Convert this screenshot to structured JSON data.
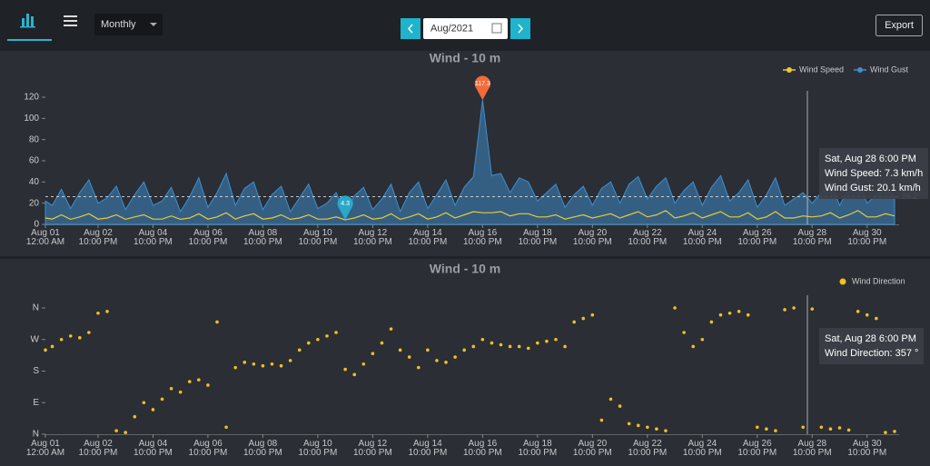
{
  "header": {
    "period": "Monthly",
    "date": "Aug/2021",
    "export": "Export"
  },
  "chart_data": [
    {
      "type": "line",
      "title": "Wind - 10 m",
      "x": [
        "2021-08-01T00:00",
        "2021-08-01T06:00",
        "2021-08-01T14:00",
        "2021-08-01T22:00",
        "2021-08-02T06:00",
        "2021-08-02T14:00",
        "2021-08-02T22:00",
        "2021-08-03T06:00",
        "2021-08-03T14:00",
        "2021-08-03T22:00",
        "2021-08-04T06:00",
        "2021-08-04T14:00",
        "2021-08-04T22:00",
        "2021-08-05T06:00",
        "2021-08-05T14:00",
        "2021-08-05T22:00",
        "2021-08-06T06:00",
        "2021-08-06T14:00",
        "2021-08-06T22:00",
        "2021-08-07T06:00",
        "2021-08-07T14:00",
        "2021-08-07T22:00",
        "2021-08-08T06:00",
        "2021-08-08T14:00",
        "2021-08-08T22:00",
        "2021-08-09T06:00",
        "2021-08-09T14:00",
        "2021-08-09T22:00",
        "2021-08-10T06:00",
        "2021-08-10T14:00",
        "2021-08-10T22:00",
        "2021-08-11T06:00",
        "2021-08-11T14:00",
        "2021-08-11T22:00",
        "2021-08-12T06:00",
        "2021-08-12T14:00",
        "2021-08-12T22:00",
        "2021-08-13T06:00",
        "2021-08-13T14:00",
        "2021-08-13T22:00",
        "2021-08-14T06:00",
        "2021-08-14T14:00",
        "2021-08-14T22:00",
        "2021-08-15T06:00",
        "2021-08-15T14:00",
        "2021-08-15T22:00",
        "2021-08-16T06:00",
        "2021-08-16T14:00",
        "2021-08-16T22:00",
        "2021-08-17T06:00",
        "2021-08-17T14:00",
        "2021-08-17T22:00",
        "2021-08-18T06:00",
        "2021-08-18T14:00",
        "2021-08-18T22:00",
        "2021-08-19T06:00",
        "2021-08-19T14:00",
        "2021-08-19T22:00",
        "2021-08-20T06:00",
        "2021-08-20T14:00",
        "2021-08-20T22:00",
        "2021-08-21T06:00",
        "2021-08-21T14:00",
        "2021-08-21T22:00",
        "2021-08-22T06:00",
        "2021-08-22T14:00",
        "2021-08-22T22:00",
        "2021-08-23T06:00",
        "2021-08-23T14:00",
        "2021-08-23T22:00",
        "2021-08-24T06:00",
        "2021-08-24T14:00",
        "2021-08-24T22:00",
        "2021-08-25T06:00",
        "2021-08-25T14:00",
        "2021-08-25T22:00",
        "2021-08-26T06:00",
        "2021-08-26T14:00",
        "2021-08-26T22:00",
        "2021-08-27T06:00",
        "2021-08-27T14:00",
        "2021-08-27T22:00",
        "2021-08-28T06:00",
        "2021-08-28T14:00",
        "2021-08-28T22:00",
        "2021-08-29T06:00",
        "2021-08-29T14:00",
        "2021-08-29T22:00",
        "2021-08-30T06:00",
        "2021-08-30T14:00",
        "2021-08-30T22:00",
        "2021-08-31T06:00",
        "2021-08-31T14:00",
        "2021-08-31T22:00"
      ],
      "series": [
        {
          "name": "Wind Gust",
          "color": "#3d8fd1",
          "fill": true,
          "values": [
            22,
            18,
            33,
            15,
            30,
            42,
            20,
            25,
            36,
            14,
            28,
            40,
            18,
            22,
            35,
            12,
            26,
            44,
            16,
            30,
            48,
            18,
            34,
            40,
            14,
            28,
            36,
            12,
            25,
            38,
            15,
            20,
            30,
            10,
            27,
            35,
            14,
            24,
            38,
            12,
            30,
            40,
            15,
            28,
            42,
            18,
            35,
            45,
            117.3,
            46,
            48,
            30,
            44,
            40,
            22,
            30,
            38,
            16,
            28,
            36,
            18,
            34,
            40,
            20,
            38,
            45,
            24,
            36,
            44,
            20,
            32,
            40,
            18,
            35,
            46,
            22,
            30,
            42,
            16,
            28,
            44,
            18,
            24,
            30,
            20,
            30,
            40,
            18,
            34,
            42,
            20,
            28,
            34,
            26
          ]
        },
        {
          "name": "Wind Speed",
          "color": "#e8c93a",
          "fill": false,
          "values": [
            6,
            5,
            9,
            4.8,
            7,
            10,
            5,
            6,
            9,
            4.8,
            7,
            9,
            5,
            5,
            8,
            4.8,
            6,
            10,
            5,
            7,
            11,
            5,
            8,
            10,
            5,
            6,
            9,
            4.8,
            6,
            9,
            5,
            5,
            7,
            4.3,
            6,
            9,
            5,
            6,
            10,
            4.8,
            7,
            10,
            5,
            7,
            11,
            6,
            9,
            12,
            11,
            11,
            12,
            8,
            10,
            10,
            7,
            7,
            9,
            5,
            7,
            9,
            6,
            8,
            10,
            6,
            9,
            12,
            7,
            9,
            13,
            6,
            8,
            11,
            6,
            9,
            12,
            7,
            7,
            11,
            5,
            7,
            12,
            6,
            6,
            8,
            7,
            8,
            11,
            6,
            9,
            13,
            7,
            7,
            10,
            8
          ]
        }
      ],
      "xlim": [
        "2021-08-01T00:00",
        "2021-08-31T22:00"
      ],
      "xticks": [
        {
          "value": "2021-08-01T00:00",
          "label": "Aug 01\n12:00 AM"
        },
        {
          "value": "2021-08-02T22:00",
          "label": "Aug 02\n10:00 PM"
        },
        {
          "value": "2021-08-04T22:00",
          "label": "Aug 04\n10:00 PM"
        },
        {
          "value": "2021-08-06T22:00",
          "label": "Aug 06\n10:00 PM"
        },
        {
          "value": "2021-08-08T22:00",
          "label": "Aug 08\n10:00 PM"
        },
        {
          "value": "2021-08-10T22:00",
          "label": "Aug 10\n10:00 PM"
        },
        {
          "value": "2021-08-12T22:00",
          "label": "Aug 12\n10:00 PM"
        },
        {
          "value": "2021-08-14T22:00",
          "label": "Aug 14\n10:00 PM"
        },
        {
          "value": "2021-08-16T22:00",
          "label": "Aug 16\n10:00 PM"
        },
        {
          "value": "2021-08-18T22:00",
          "label": "Aug 18\n10:00 PM"
        },
        {
          "value": "2021-08-20T22:00",
          "label": "Aug 20\n10:00 PM"
        },
        {
          "value": "2021-08-22T22:00",
          "label": "Aug 22\n10:00 PM"
        },
        {
          "value": "2021-08-24T22:00",
          "label": "Aug 24\n10:00 PM"
        },
        {
          "value": "2021-08-26T22:00",
          "label": "Aug 26\n10:00 PM"
        },
        {
          "value": "2021-08-28T22:00",
          "label": "Aug 28\n10:00 PM"
        },
        {
          "value": "2021-08-30T22:00",
          "label": "Aug 30\n10:00 PM"
        }
      ],
      "ylim": [
        0,
        120
      ],
      "yticks": [
        0,
        20,
        40,
        60,
        80,
        100,
        120
      ],
      "reference_line": 26.2,
      "max_marker": 117.3,
      "min_marker": 4.3,
      "tooltip": {
        "title": "Sat, Aug 28 6:00 PM",
        "lines": [
          "Wind Speed: 7.3 km/h",
          "Wind Gust: 20.1 km/h"
        ]
      }
    },
    {
      "type": "scatter",
      "title": "Wind - 10 m",
      "x": [
        "2021-08-01T00:00",
        "2021-08-01T06:00",
        "2021-08-01T14:00",
        "2021-08-01T22:00",
        "2021-08-02T06:00",
        "2021-08-02T14:00",
        "2021-08-02T22:00",
        "2021-08-03T06:00",
        "2021-08-03T14:00",
        "2021-08-03T22:00",
        "2021-08-04T06:00",
        "2021-08-04T14:00",
        "2021-08-04T22:00",
        "2021-08-05T06:00",
        "2021-08-05T14:00",
        "2021-08-05T22:00",
        "2021-08-06T06:00",
        "2021-08-06T14:00",
        "2021-08-06T22:00",
        "2021-08-07T06:00",
        "2021-08-07T14:00",
        "2021-08-07T22:00",
        "2021-08-08T06:00",
        "2021-08-08T14:00",
        "2021-08-08T22:00",
        "2021-08-09T06:00",
        "2021-08-09T14:00",
        "2021-08-09T22:00",
        "2021-08-10T06:00",
        "2021-08-10T14:00",
        "2021-08-10T22:00",
        "2021-08-11T06:00",
        "2021-08-11T14:00",
        "2021-08-11T22:00",
        "2021-08-12T06:00",
        "2021-08-12T14:00",
        "2021-08-12T22:00",
        "2021-08-13T06:00",
        "2021-08-13T14:00",
        "2021-08-13T22:00",
        "2021-08-14T06:00",
        "2021-08-14T14:00",
        "2021-08-14T22:00",
        "2021-08-15T06:00",
        "2021-08-15T14:00",
        "2021-08-15T22:00",
        "2021-08-16T06:00",
        "2021-08-16T14:00",
        "2021-08-16T22:00",
        "2021-08-17T06:00",
        "2021-08-17T14:00",
        "2021-08-17T22:00",
        "2021-08-18T06:00",
        "2021-08-18T14:00",
        "2021-08-18T22:00",
        "2021-08-19T06:00",
        "2021-08-19T14:00",
        "2021-08-19T22:00",
        "2021-08-20T06:00",
        "2021-08-20T14:00",
        "2021-08-20T22:00",
        "2021-08-21T06:00",
        "2021-08-21T14:00",
        "2021-08-21T22:00",
        "2021-08-22T06:00",
        "2021-08-22T14:00",
        "2021-08-22T22:00",
        "2021-08-23T06:00",
        "2021-08-23T14:00",
        "2021-08-23T22:00",
        "2021-08-24T06:00",
        "2021-08-24T14:00",
        "2021-08-24T22:00",
        "2021-08-25T06:00",
        "2021-08-25T14:00",
        "2021-08-25T22:00",
        "2021-08-26T06:00",
        "2021-08-26T14:00",
        "2021-08-26T22:00",
        "2021-08-27T06:00",
        "2021-08-27T14:00",
        "2021-08-27T22:00",
        "2021-08-28T06:00",
        "2021-08-28T14:00",
        "2021-08-28T22:00",
        "2021-08-29T06:00",
        "2021-08-29T14:00",
        "2021-08-29T22:00",
        "2021-08-30T06:00",
        "2021-08-30T14:00",
        "2021-08-30T22:00",
        "2021-08-31T06:00",
        "2021-08-31T14:00",
        "2021-08-31T22:00"
      ],
      "series": [
        {
          "name": "Wind Direction",
          "color": "#f0c020",
          "values": [
            240,
            250,
            270,
            280,
            275,
            290,
            345,
            350,
            10,
            5,
            50,
            90,
            70,
            100,
            130,
            120,
            150,
            155,
            140,
            320,
            20,
            190,
            205,
            200,
            195,
            200,
            195,
            210,
            240,
            260,
            270,
            280,
            290,
            185,
            170,
            200,
            230,
            260,
            300,
            240,
            220,
            190,
            240,
            210,
            205,
            220,
            240,
            250,
            270,
            260,
            255,
            250,
            250,
            245,
            260,
            265,
            270,
            250,
            320,
            330,
            340,
            40,
            100,
            80,
            30,
            25,
            20,
            15,
            10,
            360,
            290,
            250,
            270,
            320,
            340,
            345,
            350,
            340,
            20,
            15,
            10,
            355,
            360,
            20,
            357,
            20,
            15,
            18,
            12,
            350,
            340,
            330,
            5,
            8
          ]
        }
      ],
      "xlim": [
        "2021-08-01T00:00",
        "2021-08-31T22:00"
      ],
      "xticks": [
        {
          "value": "2021-08-01T00:00",
          "label": "Aug 01\n12:00 AM"
        },
        {
          "value": "2021-08-02T22:00",
          "label": "Aug 02\n10:00 PM"
        },
        {
          "value": "2021-08-04T22:00",
          "label": "Aug 04\n10:00 PM"
        },
        {
          "value": "2021-08-06T22:00",
          "label": "Aug 06\n10:00 PM"
        },
        {
          "value": "2021-08-08T22:00",
          "label": "Aug 08\n10:00 PM"
        },
        {
          "value": "2021-08-10T22:00",
          "label": "Aug 10\n10:00 PM"
        },
        {
          "value": "2021-08-12T22:00",
          "label": "Aug 12\n10:00 PM"
        },
        {
          "value": "2021-08-14T22:00",
          "label": "Aug 14\n10:00 PM"
        },
        {
          "value": "2021-08-16T22:00",
          "label": "Aug 16\n10:00 PM"
        },
        {
          "value": "2021-08-18T22:00",
          "label": "Aug 18\n10:00 PM"
        },
        {
          "value": "2021-08-20T22:00",
          "label": "Aug 20\n10:00 PM"
        },
        {
          "value": "2021-08-22T22:00",
          "label": "Aug 22\n10:00 PM"
        },
        {
          "value": "2021-08-24T22:00",
          "label": "Aug 24\n10:00 PM"
        },
        {
          "value": "2021-08-26T22:00",
          "label": "Aug 26\n10:00 PM"
        },
        {
          "value": "2021-08-28T22:00",
          "label": "Aug 28\n10:00 PM"
        },
        {
          "value": "2021-08-30T22:00",
          "label": "Aug 30\n10:00 PM"
        }
      ],
      "ylim": [
        0,
        360
      ],
      "yticks": [
        {
          "value": 0,
          "label": "N"
        },
        {
          "value": 90,
          "label": "E"
        },
        {
          "value": 180,
          "label": "S"
        },
        {
          "value": 270,
          "label": "W"
        },
        {
          "value": 360,
          "label": "N"
        }
      ],
      "tooltip": {
        "title": "Sat, Aug 28 6:00 PM",
        "lines": [
          "Wind Direction: 357 °"
        ]
      }
    }
  ]
}
